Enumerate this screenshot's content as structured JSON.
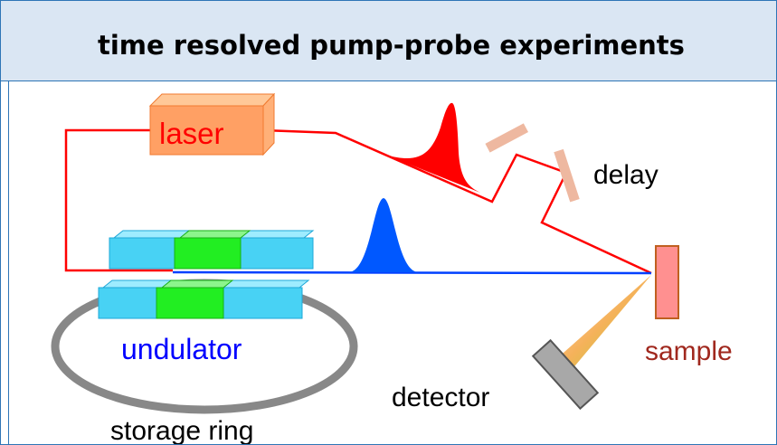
{
  "title": "time resolved pump-probe experiments",
  "labels": {
    "laser": "laser",
    "delay": "delay",
    "undulator": "undulator",
    "sample": "sample",
    "detector": "detector",
    "storage_ring": "storage ring"
  },
  "colors": {
    "pump_beam": "#ff0000",
    "probe_beam": "#0040ff",
    "laser_box": "#ffa064",
    "undulator_magnet": "#48d2f4",
    "undulator_center": "#22ee22",
    "sample": "#ff9090",
    "detector": "#a8a8a8",
    "storage_ring": "#888888",
    "delay_mirror": "#eeb8a0",
    "title_bar": "#dae6f3",
    "frame_border": "#2e75b6"
  }
}
